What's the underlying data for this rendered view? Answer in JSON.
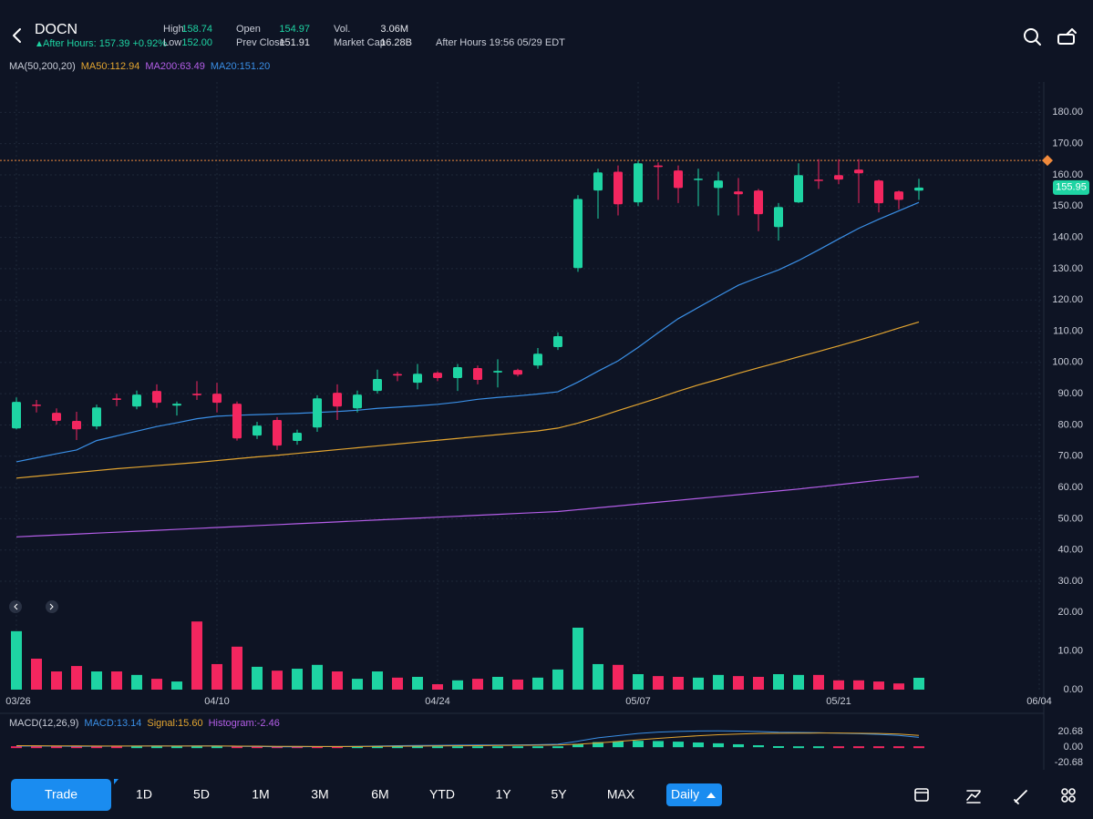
{
  "header": {
    "symbol": "DOCN",
    "after_hours_quote": "After Hours: 157.39 +0.92%",
    "stats": [
      {
        "label": "High",
        "value": "158.74"
      },
      {
        "label": "Low",
        "value": "152.00"
      },
      {
        "label": "Open",
        "value": "154.97"
      },
      {
        "label": "Prev Close",
        "value": "151.91"
      },
      {
        "label": "Vol.",
        "value": "3.06M"
      },
      {
        "label": "Market Cap",
        "value": "16.28B"
      }
    ],
    "after_hours_time": "After Hours 19:56 05/29 EDT"
  },
  "chart_data": {
    "type": "candlestick",
    "indicator_title": "MA(50,200,20)",
    "up_color": "#1ed4a3",
    "down_color": "#f3265f",
    "xticks": [
      {
        "value": 0,
        "label": "03/26"
      },
      {
        "value": 10,
        "label": "04/10"
      },
      {
        "value": 21,
        "label": "04/24"
      },
      {
        "value": 31,
        "label": "05/07"
      },
      {
        "value": 41,
        "label": "05/21"
      },
      {
        "value": 51,
        "label": "06/04"
      }
    ],
    "open": [
      78.9,
      86.5,
      83.9,
      81.3,
      79.5,
      88.5,
      85.9,
      90.9,
      86.2,
      90,
      90,
      86.8,
      76.6,
      81.6,
      74.9,
      79.2,
      90.3,
      85.3,
      90.9,
      96.3,
      93.5,
      96.7,
      95,
      98.2,
      96.8,
      97.6,
      99,
      104.9,
      130.2,
      155,
      161,
      151.2,
      163,
      161.4,
      158.5,
      155.8,
      154.7,
      155,
      143.3,
      151.2,
      158.5,
      159.9,
      161.7,
      158.2,
      154.7,
      154.97
    ],
    "high": [
      88.8,
      88,
      85.3,
      84.2,
      86.5,
      90,
      91,
      93,
      87.5,
      94,
      93.5,
      87.5,
      81,
      82.5,
      78.5,
      89.5,
      93,
      91,
      97.7,
      97,
      99.5,
      97.2,
      99.5,
      99,
      101,
      98,
      104.6,
      109.6,
      153.5,
      162,
      163,
      164.5,
      164,
      163,
      162,
      161,
      159,
      155.5,
      151,
      163.7,
      165,
      165,
      165,
      158.5,
      155,
      158.74
    ],
    "low": [
      78.6,
      84,
      80.1,
      75.2,
      78.6,
      86,
      85,
      85.5,
      83,
      88,
      84,
      75,
      75.5,
      72,
      73.7,
      77.8,
      81.6,
      84,
      90,
      94,
      91.4,
      94,
      90.9,
      93,
      92,
      95.5,
      98,
      104,
      129,
      146,
      147,
      150,
      152,
      151,
      150,
      147,
      147,
      142,
      139,
      151,
      155.5,
      157,
      151,
      148,
      149,
      152
    ],
    "close": [
      87.4,
      86.2,
      81.3,
      78.6,
      85.6,
      88,
      89.7,
      87.1,
      86.8,
      89.5,
      87.1,
      75.7,
      79.8,
      73.4,
      77.5,
      88.5,
      85.9,
      89.7,
      94.7,
      95.8,
      96.4,
      95,
      98.5,
      94.4,
      97.3,
      96.1,
      102.8,
      108.4,
      152.3,
      160.8,
      150.6,
      163.7,
      162.5,
      155.8,
      158.8,
      158.2,
      153.8,
      147.4,
      149.7,
      159.9,
      158.2,
      158.5,
      160.5,
      150.9,
      152,
      155.95
    ],
    "last_price_label": "155.95",
    "alert_level": 164.6,
    "alert_color": "#f08a3c",
    "ylim": [
      25,
      190
    ],
    "yticks": [
      {
        "value": 30,
        "label": "30.00"
      },
      {
        "value": 40,
        "label": "40.00"
      },
      {
        "value": 50,
        "label": "50.00"
      },
      {
        "value": 60,
        "label": "60.00"
      },
      {
        "value": 70,
        "label": "70.00"
      },
      {
        "value": 80,
        "label": "80.00"
      },
      {
        "value": 90,
        "label": "90.00"
      },
      {
        "value": 100,
        "label": "100.00"
      },
      {
        "value": 110,
        "label": "110.00"
      },
      {
        "value": 120,
        "label": "120.00"
      },
      {
        "value": 130,
        "label": "130.00"
      },
      {
        "value": 140,
        "label": "140.00"
      },
      {
        "value": 150,
        "label": "150.00"
      },
      {
        "value": 160,
        "label": "160.00"
      },
      {
        "value": 170,
        "label": "170.00"
      },
      {
        "value": 180,
        "label": "180.00"
      }
    ],
    "grid": true,
    "ma_series": [
      {
        "name": "MA50:112.94",
        "color": "#e3a530",
        "values": [
          63,
          63.6,
          64.2,
          64.8,
          65.4,
          66,
          66.5,
          67,
          67.5,
          68,
          68.6,
          69.2,
          69.8,
          70.3,
          70.9,
          71.5,
          72.1,
          72.7,
          73.3,
          73.9,
          74.5,
          75.1,
          75.7,
          76.3,
          76.9,
          77.5,
          78.1,
          79,
          80.6,
          82.5,
          84.6,
          86.6,
          88.6,
          90.8,
          92.8,
          94.6,
          96.5,
          98.3,
          100,
          101.8,
          103.5,
          105.3,
          107.1,
          109,
          111,
          112.94
        ]
      },
      {
        "name": "MA200:63.49",
        "color": "#b45ee8",
        "values": [
          44.2,
          44.5,
          44.8,
          45.1,
          45.4,
          45.7,
          46,
          46.3,
          46.6,
          46.9,
          47.2,
          47.5,
          47.8,
          48.1,
          48.4,
          48.7,
          49,
          49.3,
          49.6,
          49.9,
          50.2,
          50.5,
          50.8,
          51.1,
          51.4,
          51.7,
          52,
          52.3,
          52.9,
          53.5,
          54.1,
          54.7,
          55.3,
          55.9,
          56.5,
          57.1,
          57.7,
          58.3,
          58.9,
          59.5,
          60.2,
          60.9,
          61.6,
          62.3,
          62.9,
          63.49
        ]
      },
      {
        "name": "MA20:151.20",
        "color": "#3a8fe6",
        "values": [
          68.2,
          69.5,
          70.8,
          72,
          75,
          76.5,
          78,
          79.5,
          80.7,
          82,
          82.8,
          83.1,
          83.3,
          83.5,
          83.7,
          84,
          84.3,
          84.7,
          85.3,
          85.7,
          86.1,
          86.6,
          87.3,
          88.2,
          88.8,
          89.3,
          89.9,
          90.6,
          93.7,
          97.2,
          100.5,
          104.8,
          109.5,
          114,
          117.6,
          121.2,
          124.7,
          127.2,
          129.6,
          132.6,
          136,
          139.5,
          142.9,
          145.8,
          148.5,
          151.2
        ]
      }
    ],
    "volume": {
      "values": [
        15.1,
        8,
        4.7,
        6.1,
        4.7,
        4.7,
        3.8,
        2.8,
        2.1,
        17.6,
        6.6,
        11.1,
        5.9,
        4.9,
        5.4,
        6.4,
        4.7,
        2.8,
        4.7,
        3.1,
        3.3,
        1.4,
        2.4,
        2.8,
        3.3,
        2.6,
        3.1,
        5.2,
        16,
        6.6,
        6.4,
        4,
        3.5,
        3.3,
        3.1,
        3.8,
        3.5,
        3.3,
        4,
        3.8,
        3.8,
        2.4,
        2.4,
        2.1,
        1.6,
        3.06
      ],
      "ylim": [
        0,
        22
      ],
      "yticks": [
        {
          "value": 0,
          "label": "0.00"
        },
        {
          "value": 10,
          "label": "10.00"
        },
        {
          "value": 20,
          "label": "20.00"
        }
      ]
    },
    "macd": {
      "title": "MACD(12,26,9)",
      "series": [
        {
          "name": "MACD:13.14",
          "color": "#3a8fe6",
          "values": [
            1.5,
            1.6,
            1.5,
            1.2,
            1.3,
            1.4,
            1.6,
            1.7,
            1.6,
            1.8,
            1.7,
            1.2,
            1,
            0.6,
            0.5,
            0.8,
            0.9,
            1.1,
            1.6,
            2,
            2.3,
            2.5,
            2.8,
            2.9,
            3,
            3.1,
            3.4,
            4,
            8,
            12.5,
            15.3,
            18.2,
            20,
            21,
            21.5,
            21.7,
            21.4,
            20.8,
            19.9,
            19.6,
            19.3,
            18.6,
            18,
            17,
            15.7,
            13.14
          ]
        },
        {
          "name": "Signal:15.60",
          "color": "#e3a530",
          "values": [
            2,
            1.9,
            1.8,
            1.7,
            1.6,
            1.6,
            1.6,
            1.6,
            1.6,
            1.6,
            1.6,
            1.5,
            1.4,
            1.2,
            1.1,
            1,
            1,
            1,
            1.1,
            1.3,
            1.5,
            1.7,
            1.9,
            2.1,
            2.3,
            2.5,
            2.7,
            3,
            4,
            5.7,
            7.6,
            9.7,
            11.8,
            13.6,
            15.2,
            16.5,
            17.5,
            18.2,
            18.5,
            18.7,
            18.8,
            18.8,
            18.6,
            18.3,
            17.5,
            15.6
          ]
        },
        {
          "name": "Histogram:-2.46",
          "color": "#b45ee8",
          "values": [
            -0.5,
            -0.3,
            -0.3,
            -0.5,
            -0.3,
            -0.2,
            0,
            0.1,
            0,
            0.2,
            0.1,
            -0.3,
            -0.4,
            -0.6,
            -0.6,
            -0.2,
            -0.1,
            0.1,
            0.5,
            0.7,
            0.8,
            0.8,
            0.9,
            0.8,
            0.7,
            0.6,
            0.7,
            1,
            4,
            6.8,
            7.7,
            8.5,
            8.2,
            7.4,
            6.3,
            5.2,
            3.9,
            2.6,
            1.4,
            0.9,
            0.5,
            -0.2,
            -0.6,
            -1.3,
            -1.8,
            -2.46
          ]
        }
      ],
      "ylim": [
        -24,
        30.5
      ],
      "yticks": [
        {
          "value": 20.68,
          "label": "20.68"
        },
        {
          "value": 0,
          "label": "0.00"
        },
        {
          "value": -20.68,
          "label": "-20.68"
        }
      ]
    }
  },
  "toolbar": {
    "trade": "Trade",
    "ranges": [
      "1D",
      "5D",
      "1M",
      "3M",
      "6M",
      "YTD",
      "1Y",
      "5Y",
      "MAX"
    ],
    "interval": "Daily"
  }
}
